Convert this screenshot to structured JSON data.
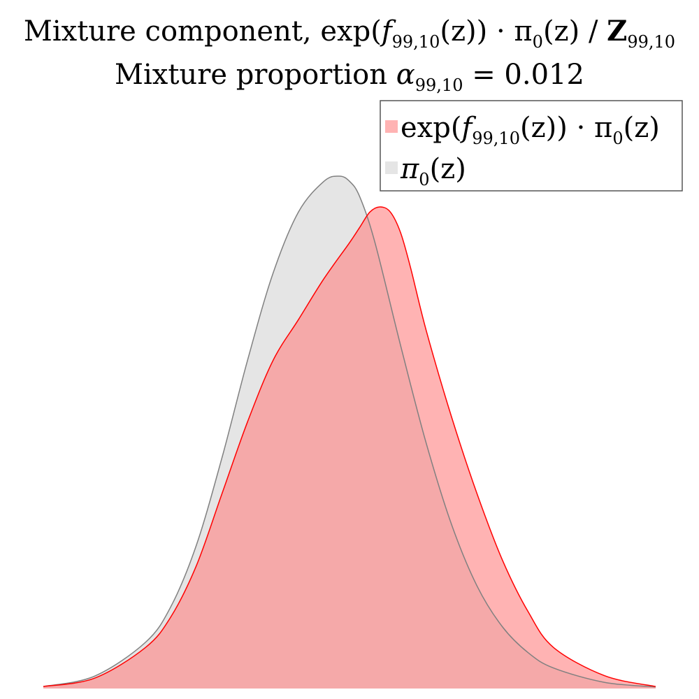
{
  "chart_data": {
    "type": "area",
    "title": {
      "line1": {
        "prefix": "Mixture component, exp(",
        "f_sym": "f",
        "f_sub": "99,10",
        "mid": "(z)) · π",
        "pi_sub": "0",
        "after_pi": "(z) / ",
        "z_sym": "Z",
        "z_sub": "99,10"
      },
      "line2": {
        "prefix": "Mixture proportion ",
        "alpha_sym": "α",
        "alpha_sub": "99,10",
        "value_text": " = 0.012"
      }
    },
    "mixture_proportion": 0.012,
    "xlabel": "",
    "ylabel": "",
    "xlim": [
      -3,
      3
    ],
    "ylim": [
      0,
      1
    ],
    "grid": false,
    "axes_visible": false,
    "legend_placement": "top-right",
    "series": [
      {
        "name": "exp(f_99,10(z)) · π_0(z)",
        "color": "#ff0000",
        "fill": "#ff8080",
        "legend": {
          "pre": "exp(",
          "f_sym": "f",
          "f_sub": "99,10",
          "mid": "(z)) · π",
          "pi_sub": "0",
          "post": "(z)"
        },
        "x": [
          -3.0,
          -2.5,
          -2.0,
          -1.75,
          -1.5,
          -1.25,
          -1.0,
          -0.75,
          -0.5,
          -0.25,
          0.0,
          0.1,
          0.2,
          0.3,
          0.4,
          0.5,
          0.6,
          0.75,
          1.0,
          1.25,
          1.5,
          1.75,
          2.0,
          2.5,
          3.0
        ],
        "values": [
          0.004,
          0.02,
          0.08,
          0.14,
          0.24,
          0.38,
          0.52,
          0.64,
          0.72,
          0.8,
          0.87,
          0.9,
          0.93,
          0.94,
          0.93,
          0.89,
          0.82,
          0.7,
          0.53,
          0.38,
          0.25,
          0.15,
          0.08,
          0.025,
          0.004
        ]
      },
      {
        "name": "π_0(z)",
        "color": "#808080",
        "fill": "#cccccc",
        "legend": {
          "pi": "π",
          "pi_sub": "0",
          "post": "(z)"
        },
        "x": [
          -3.0,
          -2.5,
          -2.0,
          -1.75,
          -1.5,
          -1.25,
          -1.0,
          -0.75,
          -0.5,
          -0.25,
          -0.1,
          0.0,
          0.1,
          0.25,
          0.5,
          0.75,
          1.0,
          1.25,
          1.5,
          1.75,
          2.0,
          2.5,
          3.0
        ],
        "values": [
          0.004,
          0.024,
          0.09,
          0.16,
          0.28,
          0.45,
          0.64,
          0.81,
          0.93,
          0.99,
          1.0,
          0.99,
          0.96,
          0.87,
          0.67,
          0.48,
          0.32,
          0.2,
          0.12,
          0.07,
          0.04,
          0.012,
          0.003
        ]
      }
    ]
  }
}
